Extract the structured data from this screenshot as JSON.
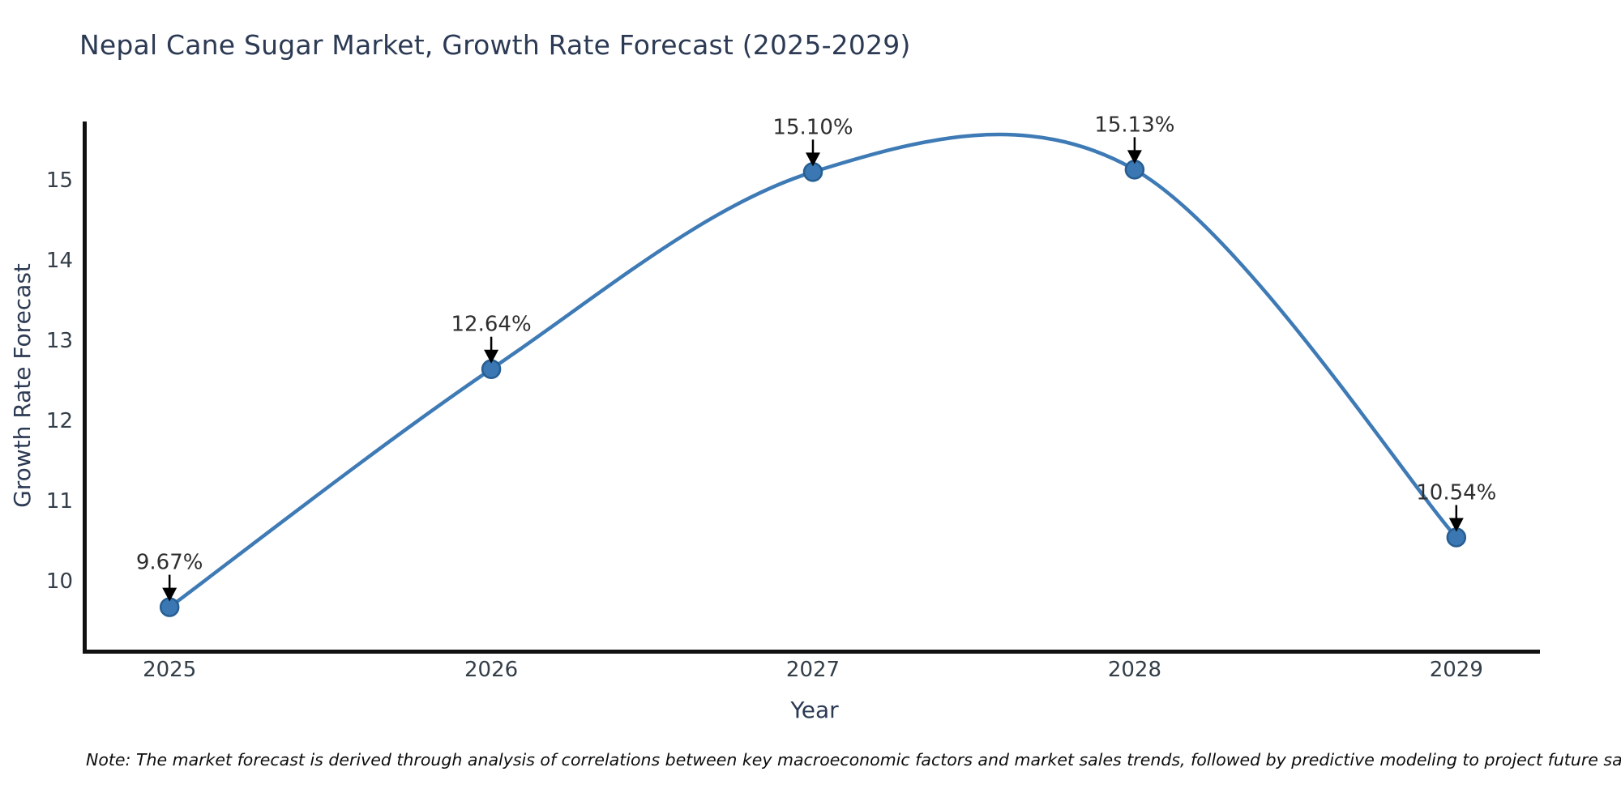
{
  "title": "Nepal Cane Sugar Market, Growth Rate Forecast (2025-2029)",
  "note": "Note: The market forecast is derived through analysis of correlations between key macroeconomic factors and market sales trends, followed by predictive modeling to project future sales.",
  "chart_data": {
    "type": "line",
    "title": "Nepal Cane Sugar Market, Growth Rate Forecast (2025-2029)",
    "xlabel": "Year",
    "ylabel": "Growth Rate Forecast",
    "x": [
      2025,
      2026,
      2027,
      2028,
      2029
    ],
    "values": [
      9.67,
      12.64,
      15.1,
      15.13,
      10.54
    ],
    "point_labels": [
      "9.67%",
      "12.64%",
      "15.10%",
      "15.13%",
      "10.54%"
    ],
    "yticks": [
      10,
      11,
      12,
      13,
      14,
      15
    ],
    "xlim": [
      2024.74,
      2029.26
    ],
    "ylim": [
      9.14,
      15.73
    ],
    "grid": false,
    "legend": null,
    "smooth": true,
    "colors": {
      "line": "#3e7ab5",
      "marker_fill": "#3a77b3",
      "marker_edge": "#275e92",
      "spine": "#111111",
      "tick_label": "#333e48",
      "annotation_text": "#2e2e2e",
      "annotation_arrow": "#000000",
      "title_text": "#2c3a54"
    }
  }
}
